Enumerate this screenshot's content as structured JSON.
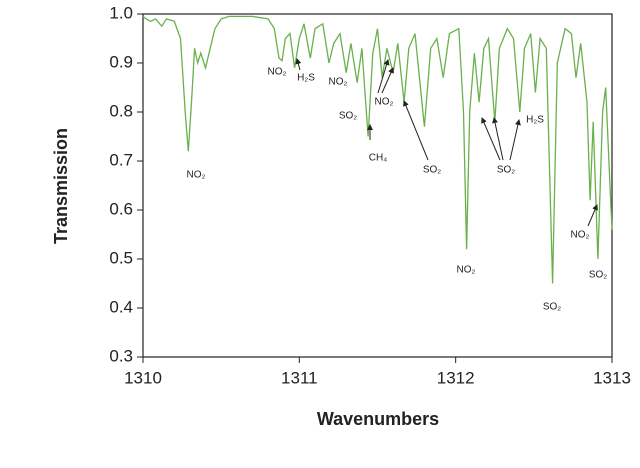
{
  "chart_data": {
    "type": "line",
    "xlabel": "Wavenumbers",
    "ylabel": "Transmission",
    "xlim": [
      1310,
      1313
    ],
    "ylim": [
      0.3,
      1.0
    ],
    "xticks": [
      1310,
      1311,
      1312,
      1313
    ],
    "yticks": [
      0.3,
      0.4,
      0.5,
      0.6,
      0.7,
      0.8,
      0.9,
      {
        "value": 1,
        "label": "1.0"
      }
    ],
    "color": "#6ab04c",
    "x": [
      1310.0,
      1310.02,
      1310.05,
      1310.08,
      1310.12,
      1310.15,
      1310.2,
      1310.24,
      1310.27,
      1310.29,
      1310.31,
      1310.33,
      1310.35,
      1310.37,
      1310.4,
      1310.43,
      1310.46,
      1310.5,
      1310.55,
      1310.7,
      1310.8,
      1310.84,
      1310.87,
      1310.89,
      1310.91,
      1310.94,
      1310.97,
      1311.0,
      1311.03,
      1311.07,
      1311.1,
      1311.15,
      1311.19,
      1311.22,
      1311.26,
      1311.3,
      1311.33,
      1311.37,
      1311.4,
      1311.44,
      1311.47,
      1311.5,
      1311.53,
      1311.56,
      1311.6,
      1311.63,
      1311.67,
      1311.7,
      1311.74,
      1311.8,
      1311.84,
      1311.88,
      1311.92,
      1311.96,
      1312.02,
      1312.05,
      1312.07,
      1312.09,
      1312.12,
      1312.15,
      1312.18,
      1312.21,
      1312.25,
      1312.28,
      1312.33,
      1312.37,
      1312.41,
      1312.44,
      1312.48,
      1312.51,
      1312.54,
      1312.58,
      1312.62,
      1312.65,
      1312.7,
      1312.74,
      1312.77,
      1312.8,
      1312.84,
      1312.86,
      1312.88,
      1312.91,
      1312.94,
      1312.96,
      1312.98,
      1313.0
    ],
    "values": [
      0.995,
      0.99,
      0.985,
      0.99,
      0.975,
      0.99,
      0.985,
      0.95,
      0.8,
      0.72,
      0.82,
      0.93,
      0.9,
      0.92,
      0.89,
      0.93,
      0.97,
      0.99,
      0.995,
      0.995,
      0.99,
      0.97,
      0.91,
      0.905,
      0.95,
      0.96,
      0.89,
      0.95,
      0.98,
      0.91,
      0.97,
      0.98,
      0.9,
      0.94,
      0.96,
      0.88,
      0.94,
      0.86,
      0.93,
      0.75,
      0.92,
      0.97,
      0.87,
      0.93,
      0.88,
      0.94,
      0.82,
      0.93,
      0.96,
      0.77,
      0.93,
      0.95,
      0.87,
      0.96,
      0.97,
      0.8,
      0.52,
      0.8,
      0.92,
      0.82,
      0.93,
      0.95,
      0.78,
      0.93,
      0.97,
      0.95,
      0.8,
      0.93,
      0.96,
      0.84,
      0.95,
      0.93,
      0.45,
      0.9,
      0.97,
      0.96,
      0.87,
      0.94,
      0.82,
      0.62,
      0.78,
      0.5,
      0.8,
      0.85,
      0.7,
      0.56
    ],
    "annotations": [
      "NO₂",
      "NO₂",
      "H₂S",
      "NO₂",
      "SO₂",
      "NO₂",
      "CH₄",
      "SO₂",
      "NO₂",
      "SO₂",
      "H₂S",
      "SO₂",
      "NO₂",
      "SO₂"
    ]
  }
}
